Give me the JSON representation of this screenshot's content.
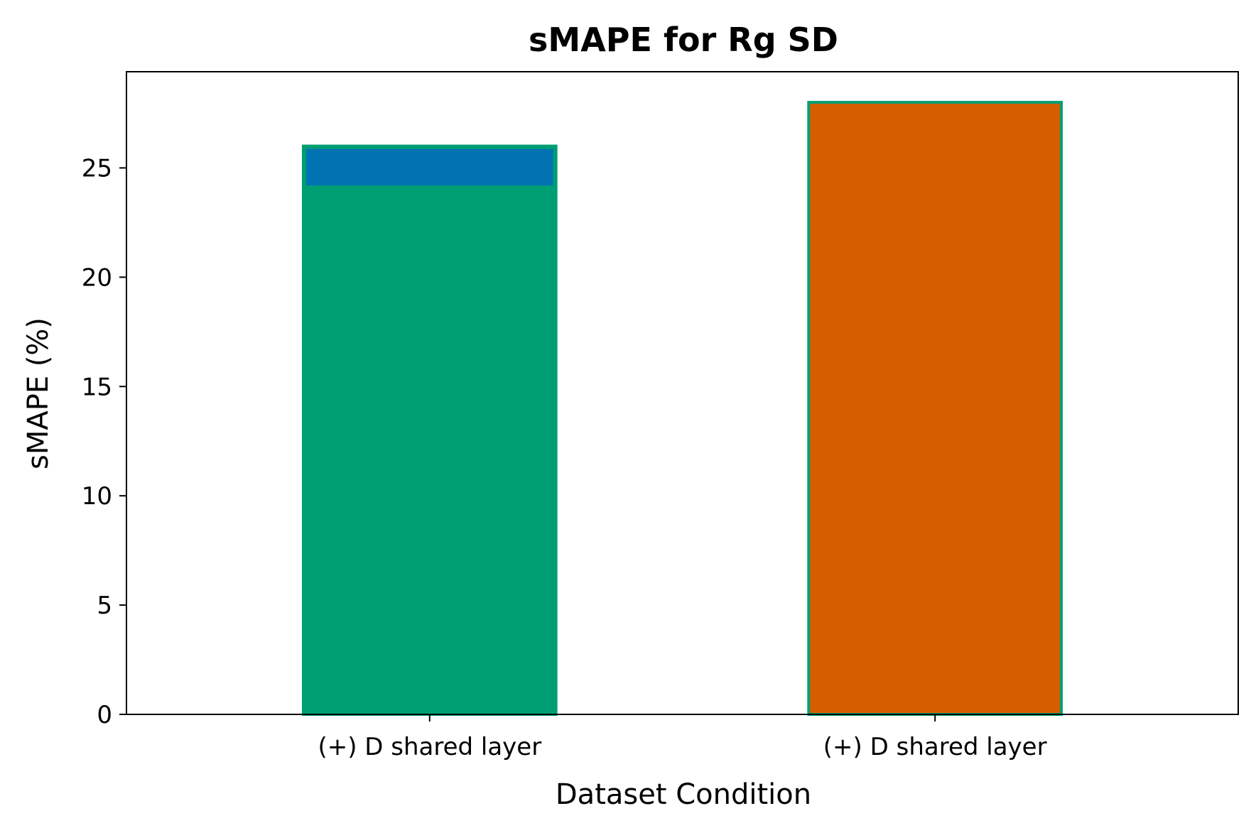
{
  "chart_data": {
    "type": "bar",
    "title": "sMAPE for Rg SD",
    "xlabel": "Dataset Condition",
    "ylabel": "sMAPE (%)",
    "ylim": [
      0,
      29.4
    ],
    "yticks": [
      0,
      5,
      10,
      15,
      20,
      25
    ],
    "categories": [
      "(+) D shared layer",
      "(+) D shared layer"
    ],
    "bars": [
      {
        "category_index": 0,
        "value": 26.0,
        "fill": "#009E73",
        "edge": "#009E73",
        "highlight": {
          "from": 24.2,
          "to": 26.0,
          "fill": "#0072B2"
        }
      },
      {
        "category_index": 1,
        "value": 28.0,
        "fill": "#D55E00",
        "edge": "#009E73"
      }
    ],
    "grid": false,
    "legend": "none"
  }
}
